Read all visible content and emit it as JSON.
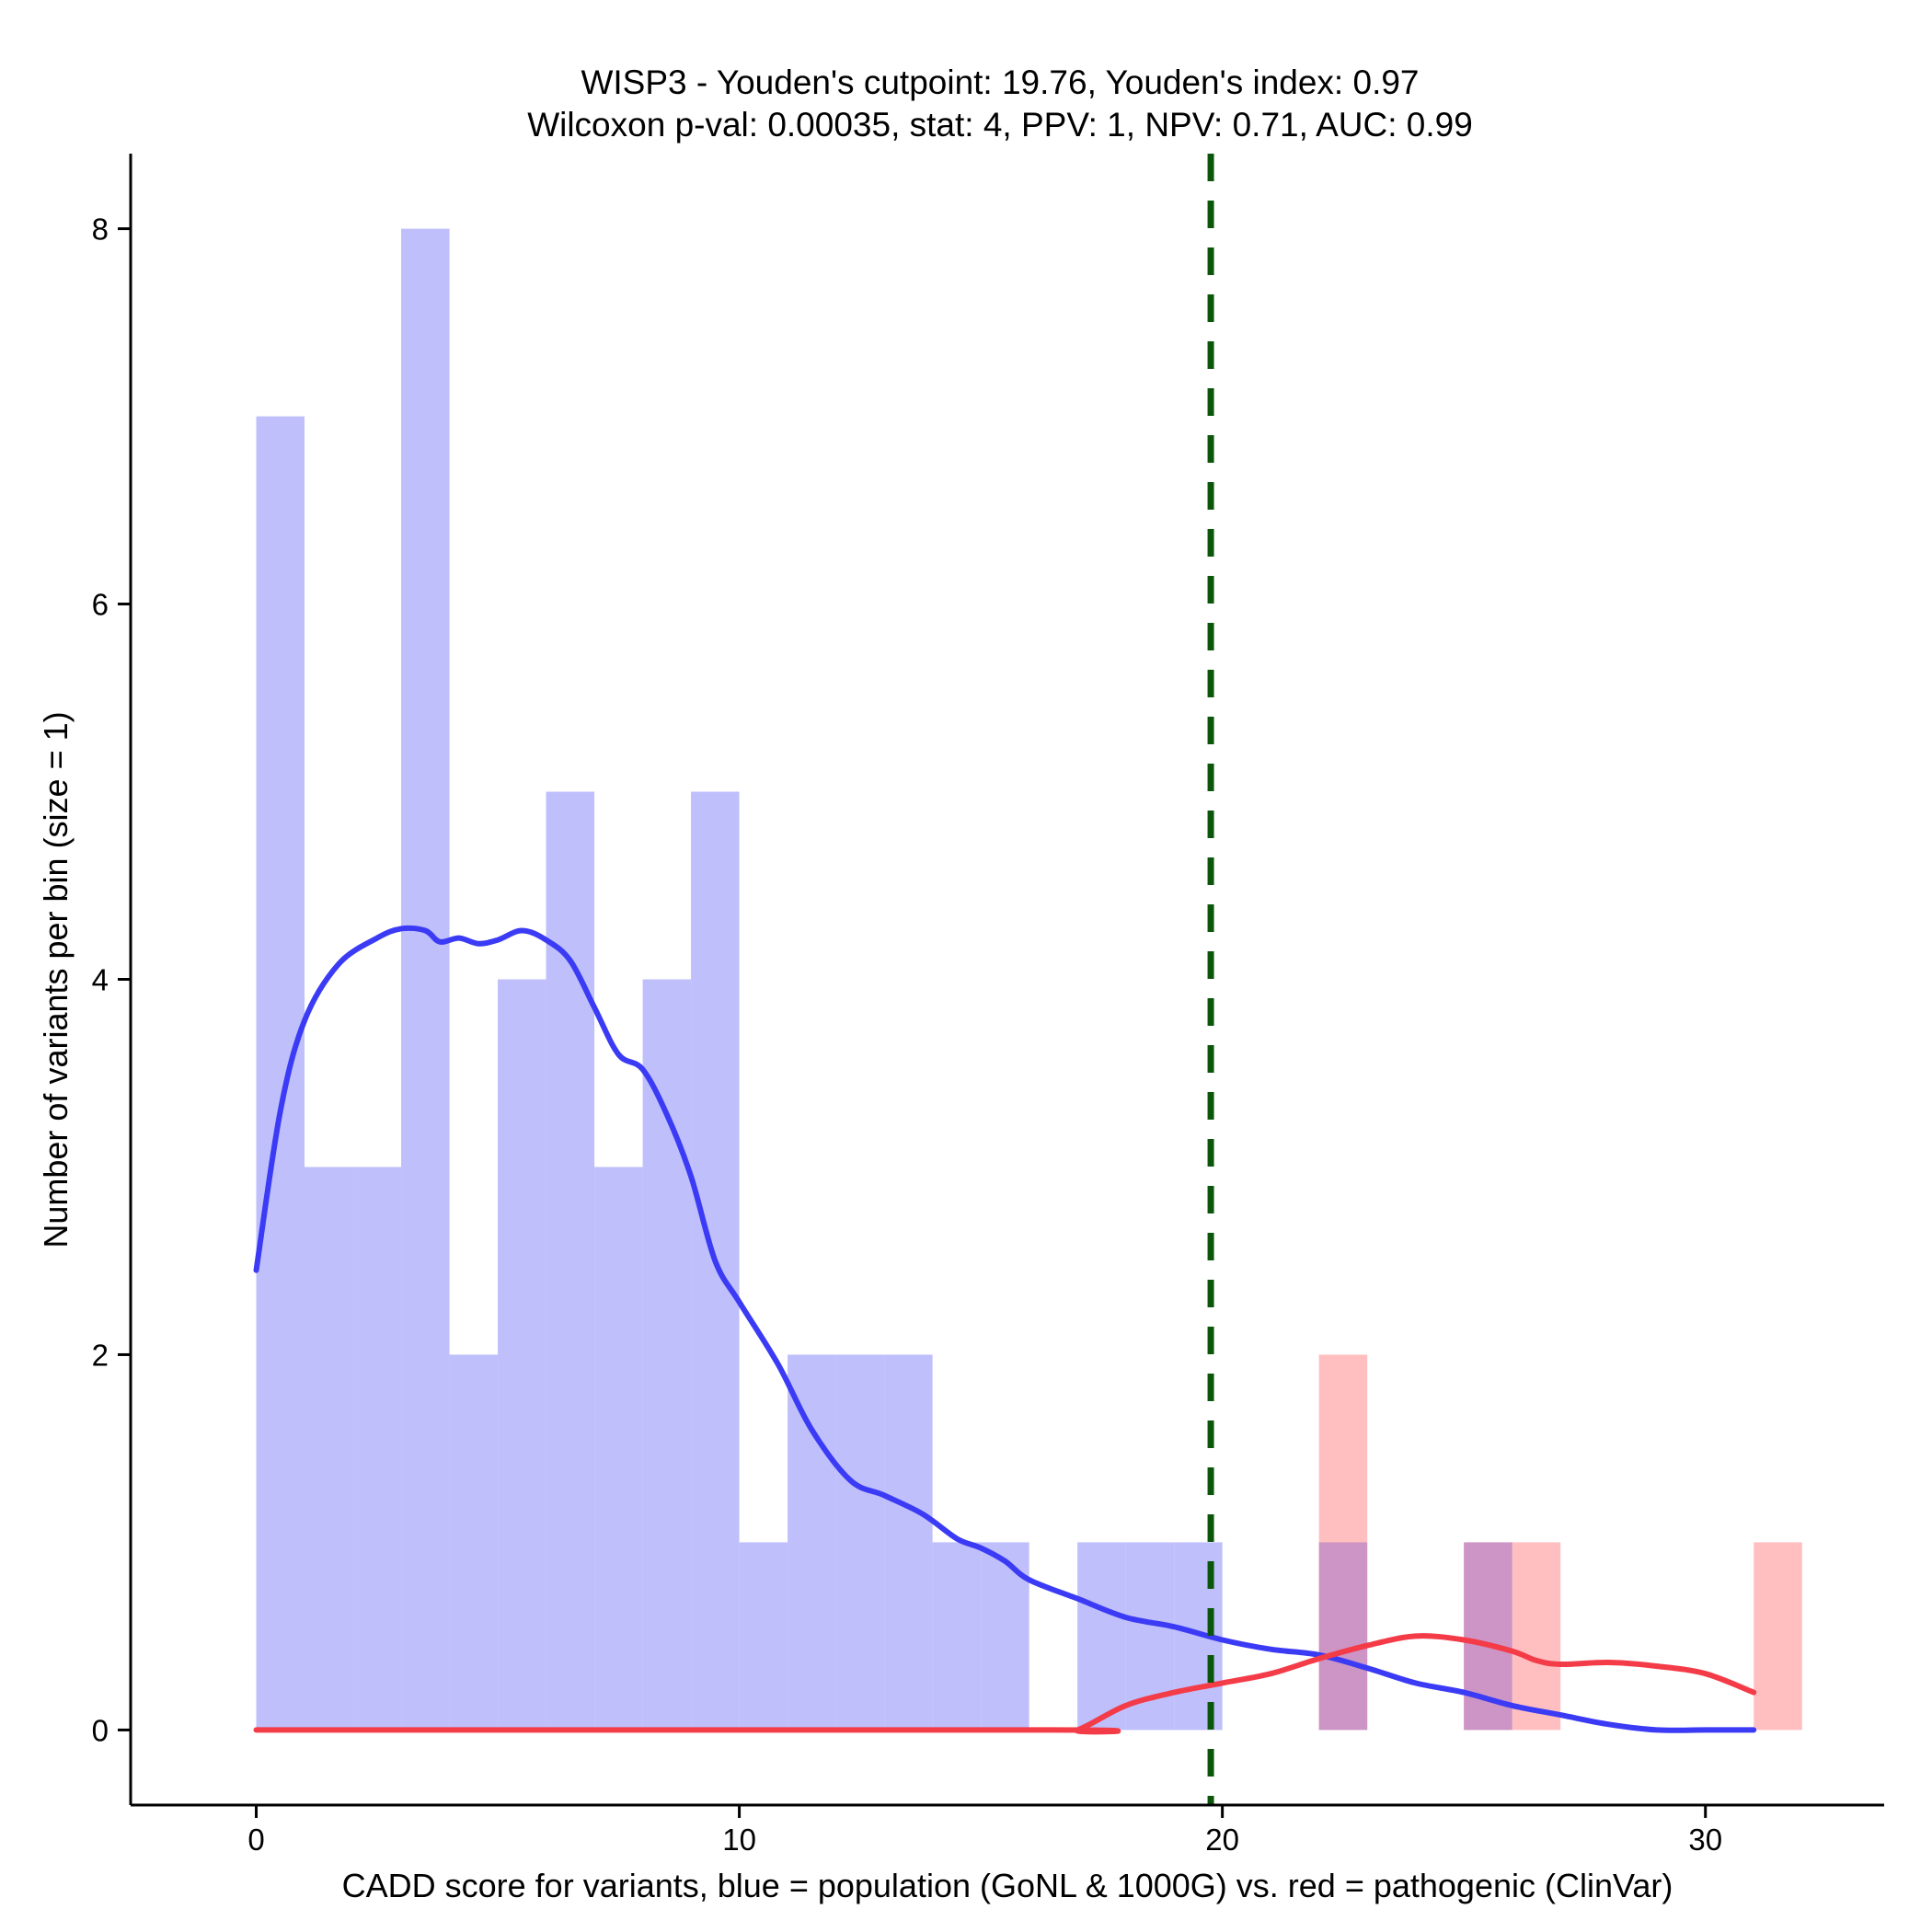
{
  "chart_data": {
    "type": "bar",
    "title_line1": "WISP3 - Youden's cutpoint: 19.76, Youden's index: 0.97",
    "title_line2": "Wilcoxon p-val: 0.00035, stat: 4, PPV: 1, NPV: 0.71, AUC: 0.99",
    "xlabel": "CADD score for variants, blue = population (GoNL & 1000G) vs. red = pathogenic (ClinVar)",
    "ylabel": "Number of variants per bin (size = 1)",
    "xlim": [
      -2.6,
      33.7
    ],
    "ylim": [
      -0.4,
      8.4
    ],
    "x_ticks": [
      0,
      10,
      20,
      30
    ],
    "y_ticks": [
      0,
      2,
      4,
      6,
      8
    ],
    "bin_width": 1,
    "cutpoint": 19.76,
    "colors": {
      "population_bar": "#bfbffc",
      "pathogenic_bar": "#ffbfc0",
      "overlap_bar": "#cc95c5",
      "population_line": "#3b3bf5",
      "pathogenic_line": "#f43b48",
      "cutpoint_line": "#0b560b"
    },
    "series": [
      {
        "key": "population",
        "bin_starts": [
          0,
          1,
          2,
          3,
          4,
          5,
          6,
          7,
          8,
          9,
          10,
          11,
          12,
          13,
          14,
          15,
          16,
          17,
          18,
          19
        ],
        "counts": [
          7,
          3,
          3,
          8,
          2,
          4,
          5,
          3,
          4,
          5,
          1,
          2,
          2,
          2,
          1,
          1,
          0,
          1,
          1,
          1
        ]
      },
      {
        "key": "pathogenic",
        "bin_starts": [
          22,
          25,
          26,
          31
        ],
        "counts": [
          2,
          1,
          1,
          1
        ]
      }
    ],
    "overlap_bins": [
      {
        "bin_start": 22,
        "count": 1
      },
      {
        "bin_start": 25,
        "count": 1
      }
    ],
    "density_population": {
      "x": [
        0,
        0.5,
        1,
        1.7,
        2.5,
        3,
        3.5,
        3.8,
        4.2,
        4.6,
        5,
        5.5,
        6,
        6.5,
        7,
        7.5,
        8,
        8.5,
        9,
        9.5,
        10,
        10.8,
        11.5,
        12.3,
        13,
        13.8,
        14.5,
        15,
        15.5,
        16,
        17,
        18,
        19,
        20,
        21,
        22,
        23,
        24,
        25,
        26,
        27,
        28,
        29,
        30,
        31
      ],
      "y": [
        2.45,
        3.3,
        3.78,
        4.08,
        4.22,
        4.27,
        4.26,
        4.2,
        4.22,
        4.19,
        4.21,
        4.26,
        4.21,
        4.1,
        3.85,
        3.6,
        3.52,
        3.28,
        2.95,
        2.5,
        2.28,
        1.95,
        1.6,
        1.33,
        1.25,
        1.15,
        1.02,
        0.97,
        0.9,
        0.8,
        0.7,
        0.6,
        0.55,
        0.48,
        0.43,
        0.4,
        0.33,
        0.25,
        0.2,
        0.13,
        0.08,
        0.03,
        0,
        0,
        0
      ]
    },
    "density_pathogenic": {
      "x": [
        0,
        16.5,
        17,
        18,
        19,
        20,
        21,
        22,
        23,
        24,
        25,
        26,
        26.5,
        27,
        28,
        29,
        30,
        31
      ],
      "y": [
        0,
        0,
        0,
        0.13,
        0.2,
        0.25,
        0.3,
        0.38,
        0.45,
        0.5,
        0.48,
        0.42,
        0.37,
        0.35,
        0.36,
        0.34,
        0.3,
        0.2
      ]
    }
  }
}
